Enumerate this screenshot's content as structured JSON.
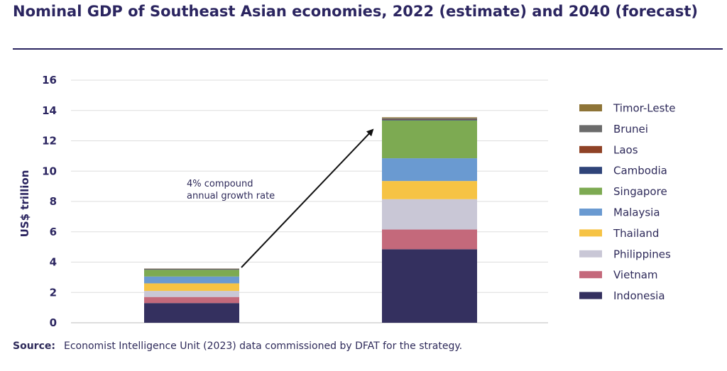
{
  "header": {
    "title": "Nominal GDP of Southeast Asian economies, 2022 (estimate) and 2040 (forecast)"
  },
  "source": {
    "label": "Source:",
    "text": "Economist Intelligence Unit (2023) data commissioned by DFAT for the strategy."
  },
  "chart_data": {
    "type": "bar",
    "stacked": true,
    "categories": [
      "",
      ""
    ],
    "xlabel": "",
    "ylabel": "US$ trillion",
    "ylim": [
      0,
      16
    ],
    "yticks": [
      0,
      2,
      4,
      6,
      8,
      10,
      12,
      14,
      16
    ],
    "grid": true,
    "legend_position": "right",
    "annotation": {
      "text_lines": [
        "4% compound",
        "annual growth rate"
      ]
    },
    "series": [
      {
        "name": "Indonesia",
        "color": "#34305f",
        "values": [
          1.3,
          4.85
        ]
      },
      {
        "name": "Vietnam",
        "color": "#c4697b",
        "values": [
          0.4,
          1.3
        ]
      },
      {
        "name": "Philippines",
        "color": "#c9c7d6",
        "values": [
          0.4,
          2.0
        ]
      },
      {
        "name": "Thailand",
        "color": "#f6c344",
        "values": [
          0.5,
          1.2
        ]
      },
      {
        "name": "Malaysia",
        "color": "#6a9ad1",
        "values": [
          0.45,
          1.5
        ]
      },
      {
        "name": "Singapore",
        "color": "#7daa52",
        "values": [
          0.45,
          2.5
        ]
      },
      {
        "name": "Cambodia",
        "color": "#2f4479",
        "values": [
          0.03,
          0.05
        ]
      },
      {
        "name": "Laos",
        "color": "#8f4226",
        "values": [
          0.02,
          0.03
        ]
      },
      {
        "name": "Brunei",
        "color": "#6b6b6b",
        "values": [
          0.02,
          0.06
        ]
      },
      {
        "name": "Timor-Leste",
        "color": "#8e7437",
        "values": [
          0.01,
          0.06
        ]
      }
    ]
  }
}
